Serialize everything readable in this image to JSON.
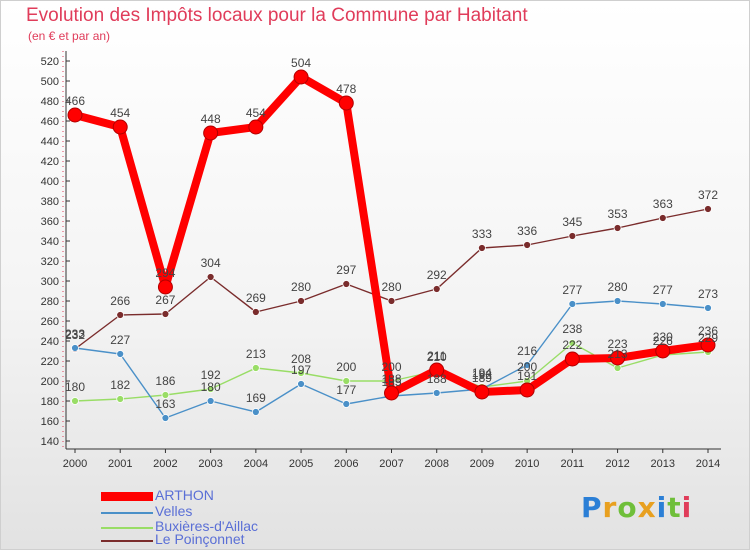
{
  "title": "Evolution des Impôts locaux pour la Commune par Habitant",
  "subtitle": "(en € et par an)",
  "logo": "Proxiti",
  "chart_data": {
    "type": "line",
    "title": "Evolution des Impôts locaux pour la Commune par Habitant",
    "subtitle": "(en € et par an)",
    "xlabel": "",
    "ylabel": "",
    "x": [
      2000,
      2001,
      2002,
      2003,
      2004,
      2005,
      2006,
      2007,
      2008,
      2009,
      2010,
      2011,
      2012,
      2013,
      2014
    ],
    "ylim": [
      140,
      520
    ],
    "yticks": [
      140,
      160,
      180,
      200,
      220,
      240,
      260,
      280,
      300,
      320,
      340,
      360,
      380,
      400,
      420,
      440,
      460,
      480,
      500,
      520
    ],
    "grid": false,
    "legend_position": "bottom-left",
    "series": [
      {
        "name": "ARTHON",
        "color": "#ff0000",
        "values": [
          466,
          454,
          294,
          448,
          454,
          504,
          478,
          188,
          211,
          189,
          191,
          222,
          223,
          230,
          236
        ]
      },
      {
        "name": "Velles",
        "color": "#4a90c8",
        "values": [
          233,
          227,
          163,
          180,
          169,
          197,
          177,
          185,
          188,
          192,
          216,
          277,
          280,
          277,
          273
        ]
      },
      {
        "name": "Buxières-d'Aillac",
        "color": "#99dd66",
        "values": [
          180,
          182,
          186,
          192,
          213,
          208,
          200,
          200,
          210,
          194,
          200,
          238,
          213,
          226,
          229
        ]
      },
      {
        "name": "Le Poinçonnet",
        "color": "#7a2c2c",
        "values": [
          232,
          266,
          267,
          304,
          269,
          280,
          297,
          280,
          292,
          333,
          336,
          345,
          353,
          363,
          372
        ]
      }
    ]
  }
}
